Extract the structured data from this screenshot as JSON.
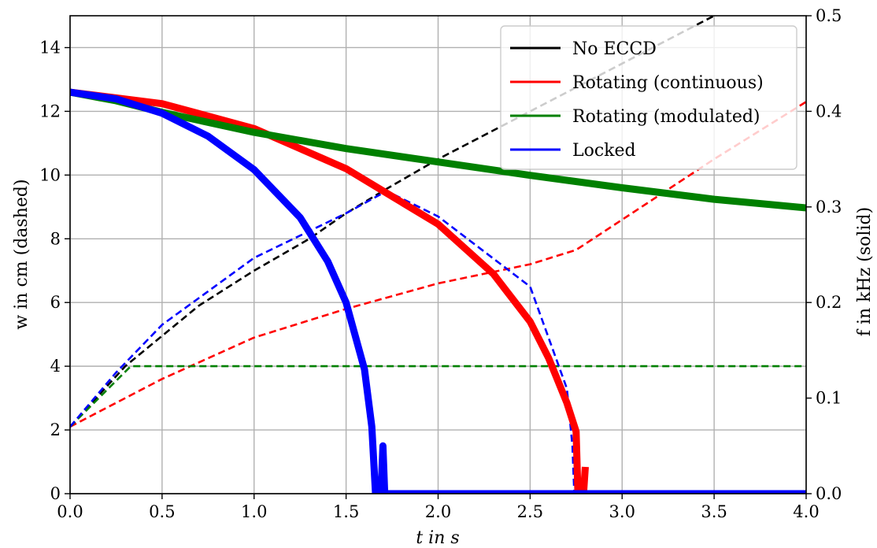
{
  "chart_data": {
    "type": "line",
    "title": "",
    "xlabel": "t in s",
    "ylabel_left": "w in cm (dashed)",
    "ylabel_right": "f in kHz (solid)",
    "xlim": [
      0,
      4.0
    ],
    "ylim_left": [
      0,
      15
    ],
    "ylim_right": [
      0,
      0.5
    ],
    "grid": true,
    "legend_position": "top-right",
    "x_ticks": [
      "0.0",
      "0.5",
      "1.0",
      "1.5",
      "2.0",
      "2.5",
      "3.0",
      "3.5",
      "4.0"
    ],
    "y_left_ticks": [
      "0",
      "2",
      "4",
      "6",
      "8",
      "10",
      "12",
      "14"
    ],
    "y_right_ticks": [
      "0.0",
      "0.1",
      "0.2",
      "0.3",
      "0.4",
      "0.5"
    ],
    "series": [
      {
        "name": "No ECCD",
        "color": "#000000",
        "w_dashed": {
          "x": [
            0,
            0.3,
            0.7,
            1.0,
            1.3,
            1.5,
            1.7,
            2.0,
            2.5,
            3.0,
            3.5,
            4.0
          ],
          "y": [
            2.1,
            4.0,
            5.9,
            7.0,
            8.0,
            8.8,
            9.5,
            10.5,
            12.0,
            13.5,
            15.0,
            16.2
          ]
        },
        "f_solid": {
          "x": [],
          "y": []
        }
      },
      {
        "name": "Rotating (continuous)",
        "color": "#ff0000",
        "w_dashed": {
          "x": [
            0,
            0.5,
            1.0,
            1.5,
            2.0,
            2.5,
            2.75,
            3.0,
            3.5,
            4.0
          ],
          "y": [
            2.1,
            3.6,
            4.9,
            5.8,
            6.6,
            7.2,
            7.65,
            8.6,
            10.5,
            12.3
          ]
        },
        "f_solid": {
          "x": [
            0,
            0.5,
            1.0,
            1.5,
            2.0,
            2.3,
            2.5,
            2.6,
            2.7,
            2.75,
            2.76,
            2.79,
            2.8
          ],
          "y": [
            0.42,
            0.408,
            0.382,
            0.34,
            0.282,
            0.23,
            0.18,
            0.142,
            0.095,
            0.065,
            0.0,
            0.0,
            0.028
          ]
        }
      },
      {
        "name": "Rotating (modulated)",
        "color": "#008000",
        "w_dashed": {
          "x": [
            0,
            0.33,
            4.0
          ],
          "y": [
            2.1,
            4.0,
            4.0
          ]
        },
        "f_solid": {
          "x": [
            0,
            0.25,
            0.5,
            1.0,
            1.5,
            2.0,
            2.5,
            3.0,
            3.5,
            4.0
          ],
          "y": [
            0.42,
            0.411,
            0.399,
            0.378,
            0.361,
            0.347,
            0.333,
            0.32,
            0.308,
            0.299
          ]
        }
      },
      {
        "name": "Locked",
        "color": "#0000ff",
        "w_dashed": {
          "x": [
            0,
            0.25,
            0.5,
            1.0,
            1.5,
            1.72,
            2.0,
            2.5,
            2.7,
            2.73,
            2.74
          ],
          "y": [
            2.1,
            3.8,
            5.3,
            7.4,
            8.8,
            9.5,
            8.7,
            6.5,
            3.3,
            1.5,
            0
          ]
        },
        "f_solid": {
          "x": [
            0,
            0.25,
            0.5,
            0.75,
            1.0,
            1.25,
            1.4,
            1.5,
            1.6,
            1.64,
            1.66,
            1.69,
            1.7,
            1.71,
            1.75,
            4.0
          ],
          "y": [
            0.42,
            0.413,
            0.398,
            0.374,
            0.339,
            0.289,
            0.243,
            0.2,
            0.13,
            0.07,
            0.0,
            0.0,
            0.05,
            0.0,
            0.0,
            0.0
          ]
        }
      }
    ]
  }
}
